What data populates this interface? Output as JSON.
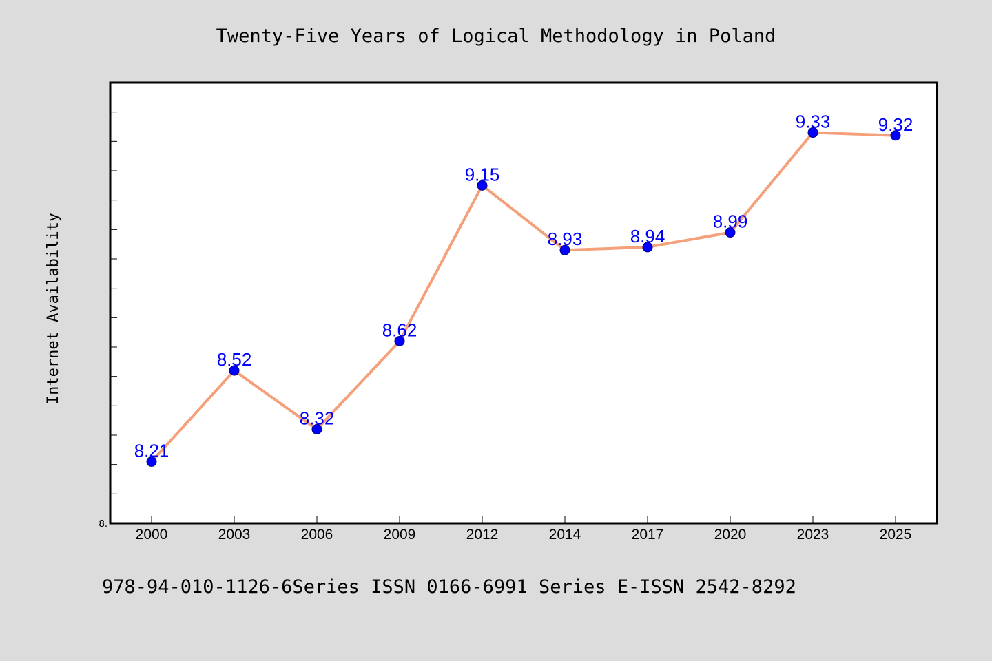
{
  "chart_data": {
    "type": "line",
    "title": "Twenty-Five Years of Logical Methodology in Poland",
    "xlabel": "",
    "ylabel": "Internet Availability",
    "categories": [
      "2000",
      "2003",
      "2006",
      "2009",
      "2012",
      "2014",
      "2017",
      "2020",
      "2023",
      "2025"
    ],
    "series": [
      {
        "values": [
          8.21,
          8.52,
          8.32,
          8.62,
          9.15,
          8.93,
          8.94,
          8.99,
          9.33,
          9.32
        ]
      }
    ],
    "data_labels": [
      "8.21",
      "8.52",
      "8.32",
      "8.62",
      "9.15",
      "8.93",
      "8.94",
      "8.99",
      "9.33",
      "9.32"
    ],
    "ylim": [
      8.0,
      9.5
    ],
    "y_tick_step": 0.1,
    "y_tick_labels": [
      {
        "value": 8.0,
        "label": "8."
      }
    ],
    "grid": false,
    "line_color": "#f4a07a",
    "marker_color": "#0000ff",
    "label_color": "#0000ff"
  },
  "footer": {
    "note": "978-94-010-1126-6Series ISSN 0166-6991 Series E-ISSN 2542-8292"
  }
}
